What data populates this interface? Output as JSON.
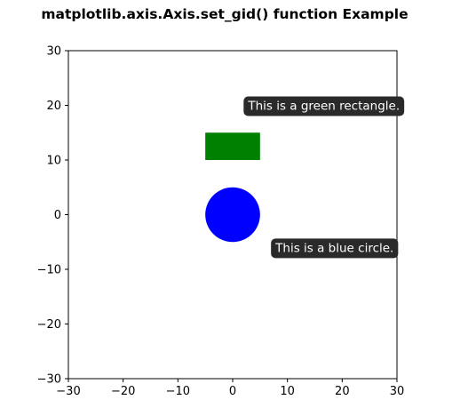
{
  "chart_data": {
    "type": "shapes",
    "title": "matplotlib.axis.Axis.set_gid() function Example",
    "xlabel": "",
    "ylabel": "",
    "xlim": [
      -30,
      30
    ],
    "ylim": [
      -30,
      30
    ],
    "xticks": [
      -30,
      -20,
      -10,
      0,
      10,
      20,
      30
    ],
    "yticks": [
      -30,
      -20,
      -10,
      0,
      10,
      20,
      30
    ],
    "xtick_labels": [
      "−30",
      "−20",
      "−10",
      "0",
      "10",
      "20",
      "30"
    ],
    "ytick_labels": [
      "−30",
      "−20",
      "−10",
      "0",
      "10",
      "20",
      "30"
    ],
    "grid": false,
    "shapes": [
      {
        "kind": "rectangle",
        "name": "green-rectangle",
        "x": -5,
        "y": 10,
        "width": 10,
        "height": 5,
        "color": "#008000"
      },
      {
        "kind": "circle",
        "name": "blue-circle",
        "cx": 0,
        "cy": 0,
        "r": 5,
        "color": "#0000ff"
      }
    ],
    "annotations": [
      {
        "name": "rectangle-tooltip",
        "text": "This is a green rectangle.",
        "x": 2,
        "y": 20
      },
      {
        "name": "circle-tooltip",
        "text": "This is a blue circle.",
        "x": 7,
        "y": -6
      }
    ]
  },
  "colors": {
    "axes_frame": "#000000",
    "tooltip_background": "#2a2a2a",
    "tooltip_text": "#ffffff"
  }
}
